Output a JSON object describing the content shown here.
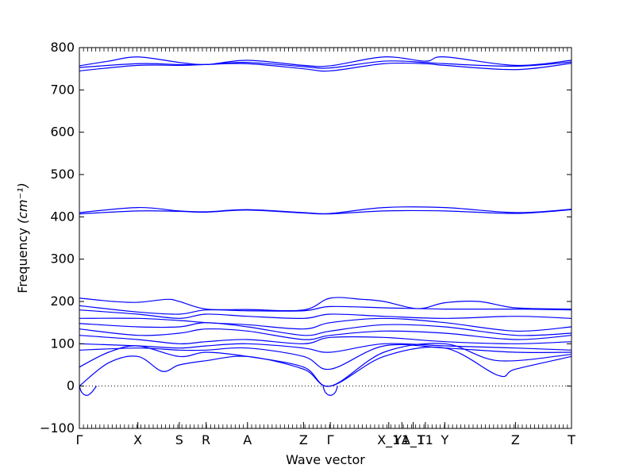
{
  "chart_data": {
    "type": "line",
    "xlabel": "Wave vector",
    "ylabel": "Frequency ",
    "ylabel_unit": "(cm⁻¹)",
    "ylim": [
      -100,
      800
    ],
    "yticks": [
      -100,
      0,
      100,
      200,
      300,
      400,
      500,
      600,
      700,
      800
    ],
    "zero_line": true,
    "line_color": "#0000ff",
    "segment_breaks": [
      0,
      1.2,
      2.05,
      2.6,
      3.45,
      4.6,
      5.15,
      6.25,
      6.65,
      6.95,
      7.1,
      7.5,
      8.95,
      10.1
    ],
    "xtick_labels": [
      {
        "x": 0,
        "label": "Γ"
      },
      {
        "x": 1.2,
        "label": "X"
      },
      {
        "x": 2.05,
        "label": "S"
      },
      {
        "x": 2.6,
        "label": "R"
      },
      {
        "x": 3.45,
        "label": "A"
      },
      {
        "x": 4.6,
        "label": "Z"
      },
      {
        "x": 5.15,
        "label": "Γ"
      },
      {
        "x": 6.35,
        "label": "X_1"
      },
      {
        "x": 6.62,
        "label": "Y1"
      },
      {
        "x": 6.85,
        "label": "A_1"
      },
      {
        "x": 7.1,
        "label": "T1"
      },
      {
        "x": 7.5,
        "label": "Y"
      },
      {
        "x": 8.95,
        "label": "Z"
      },
      {
        "x": 10.1,
        "label": "T"
      }
    ],
    "series": [
      {
        "x": [
          0,
          0.6,
          1.2,
          2.05,
          2.6,
          3.45,
          4.6,
          5.15,
          6.25,
          7.1,
          7.5,
          8.95,
          10.1
        ],
        "values": [
          757,
          768,
          778,
          765,
          760,
          770,
          758,
          757,
          778,
          768,
          778,
          758,
          770
        ]
      },
      {
        "x": [
          0,
          1.2,
          2.05,
          2.6,
          3.45,
          4.6,
          5.15,
          6.25,
          7.1,
          7.5,
          8.95,
          10.1
        ],
        "values": [
          753,
          762,
          760,
          760,
          765,
          755,
          752,
          768,
          765,
          762,
          756,
          766
        ]
      },
      {
        "x": [
          0,
          1.2,
          2.05,
          2.6,
          3.45,
          4.6,
          5.15,
          6.25,
          7.1,
          7.5,
          8.95,
          10.1
        ],
        "values": [
          745,
          758,
          758,
          760,
          762,
          750,
          745,
          762,
          762,
          758,
          748,
          763
        ]
      },
      {
        "x": [
          0,
          1.2,
          2.05,
          2.6,
          3.45,
          4.6,
          5.15,
          6.25,
          7.5,
          8.95,
          10.1
        ],
        "values": [
          410,
          422,
          414,
          412,
          417,
          410,
          408,
          422,
          422,
          410,
          418
        ]
      },
      {
        "x": [
          0,
          1.2,
          2.05,
          2.6,
          3.45,
          4.6,
          5.15,
          6.25,
          7.5,
          8.95,
          10.1
        ],
        "values": [
          407,
          414,
          413,
          411,
          416,
          409,
          407,
          414,
          414,
          408,
          417
        ]
      },
      {
        "x": [
          0,
          0.7,
          1.2,
          1.8,
          2.05,
          2.6,
          3.45,
          4.6,
          5.15,
          5.8,
          6.25,
          6.95,
          7.5,
          8.2,
          8.95,
          10.1
        ],
        "values": [
          208,
          200,
          198,
          205,
          200,
          182,
          181,
          180,
          208,
          205,
          200,
          183,
          197,
          200,
          185,
          182
        ]
      },
      {
        "x": [
          0,
          1.2,
          2.05,
          2.6,
          3.45,
          4.6,
          5.15,
          6.25,
          7.5,
          8.95,
          10.1
        ],
        "values": [
          190,
          175,
          170,
          180,
          178,
          178,
          188,
          185,
          182,
          182,
          180
        ]
      },
      {
        "x": [
          0,
          1.2,
          2.05,
          2.6,
          3.45,
          4.6,
          5.15,
          6.25,
          7.5,
          8.95,
          10.1
        ],
        "values": [
          180,
          170,
          160,
          170,
          165,
          160,
          170,
          165,
          160,
          165,
          160
        ]
      },
      {
        "x": [
          0,
          1.2,
          2.05,
          2.6,
          3.45,
          4.6,
          5.15,
          6.25,
          7.5,
          8.95,
          10.1
        ],
        "values": [
          160,
          160,
          155,
          150,
          145,
          135,
          150,
          160,
          150,
          130,
          140
        ]
      },
      {
        "x": [
          0,
          1.2,
          2.05,
          2.6,
          3.45,
          4.6,
          5.15,
          6.25,
          7.5,
          8.95,
          10.1
        ],
        "values": [
          148,
          140,
          140,
          150,
          140,
          120,
          130,
          145,
          140,
          120,
          125
        ]
      },
      {
        "x": [
          0,
          1.2,
          2.05,
          2.6,
          3.45,
          4.6,
          5.15,
          6.25,
          7.5,
          8.95,
          10.1
        ],
        "values": [
          135,
          120,
          125,
          135,
          130,
          110,
          120,
          130,
          125,
          110,
          120
        ]
      },
      {
        "x": [
          0,
          1.2,
          2.05,
          2.6,
          3.45,
          4.6,
          5.15,
          6.25,
          7.5,
          8.95,
          10.1
        ],
        "values": [
          120,
          110,
          100,
          105,
          110,
          100,
          115,
          115,
          105,
          100,
          105
        ]
      },
      {
        "x": [
          0,
          1.2,
          2.05,
          2.6,
          3.45,
          4.6,
          5.15,
          6.25,
          7.5,
          8.95,
          10.1
        ],
        "values": [
          100,
          95,
          90,
          95,
          100,
          90,
          80,
          100,
          95,
          90,
          85
        ]
      },
      {
        "x": [
          0,
          1.2,
          2.05,
          2.6,
          3.45,
          4.6,
          5.15,
          6.25,
          7.5,
          8.95,
          10.1
        ],
        "values": [
          85,
          90,
          85,
          85,
          90,
          70,
          40,
          95,
          90,
          80,
          80
        ]
      },
      {
        "x": [
          0,
          0.6,
          1.2,
          2.05,
          2.6,
          3.45,
          4.6,
          5.15,
          6.25,
          7.5,
          8.6,
          10.1
        ],
        "values": [
          45,
          80,
          95,
          70,
          80,
          70,
          45,
          0,
          80,
          100,
          60,
          75
        ]
      },
      {
        "x": [
          0,
          0.6,
          1.2,
          1.7,
          2.05,
          2.6,
          3.45,
          4.6,
          5.15,
          6.25,
          7.5,
          8.6,
          8.95,
          10.1
        ],
        "values": [
          0,
          55,
          70,
          35,
          50,
          60,
          70,
          40,
          0,
          70,
          90,
          25,
          40,
          70
        ]
      },
      {
        "x": [
          0,
          0.05,
          0.15,
          0.25,
          0.35
        ],
        "values": [
          0,
          -15,
          -22,
          -15,
          0
        ]
      },
      {
        "x": [
          5.0,
          5.05,
          5.15,
          5.25,
          5.3
        ],
        "values": [
          0,
          -15,
          -22,
          -15,
          0
        ]
      }
    ]
  }
}
